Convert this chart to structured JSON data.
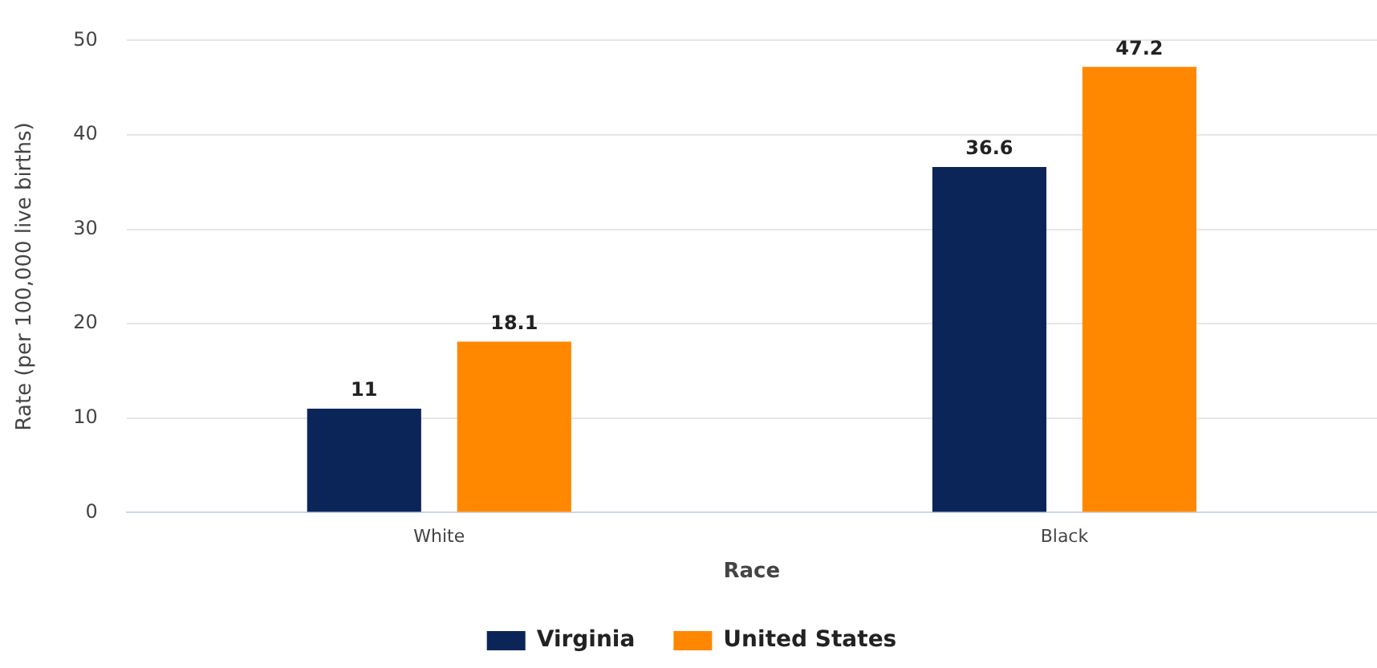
{
  "chart_data": {
    "type": "bar",
    "xlabel": "Race",
    "ylabel": "Rate (per 100,000 live births)",
    "categories": [
      "White",
      "Black"
    ],
    "series": [
      {
        "name": "Virginia",
        "color": "#0b2559",
        "values": [
          11,
          36.6
        ]
      },
      {
        "name": "United States",
        "color": "#ff8800",
        "values": [
          18.1,
          47.2
        ]
      }
    ],
    "ylim": [
      0,
      50
    ],
    "yticks": [
      0,
      10,
      20,
      30,
      40,
      50
    ],
    "grid": "y",
    "legend": "bottom",
    "data_labels": true
  }
}
